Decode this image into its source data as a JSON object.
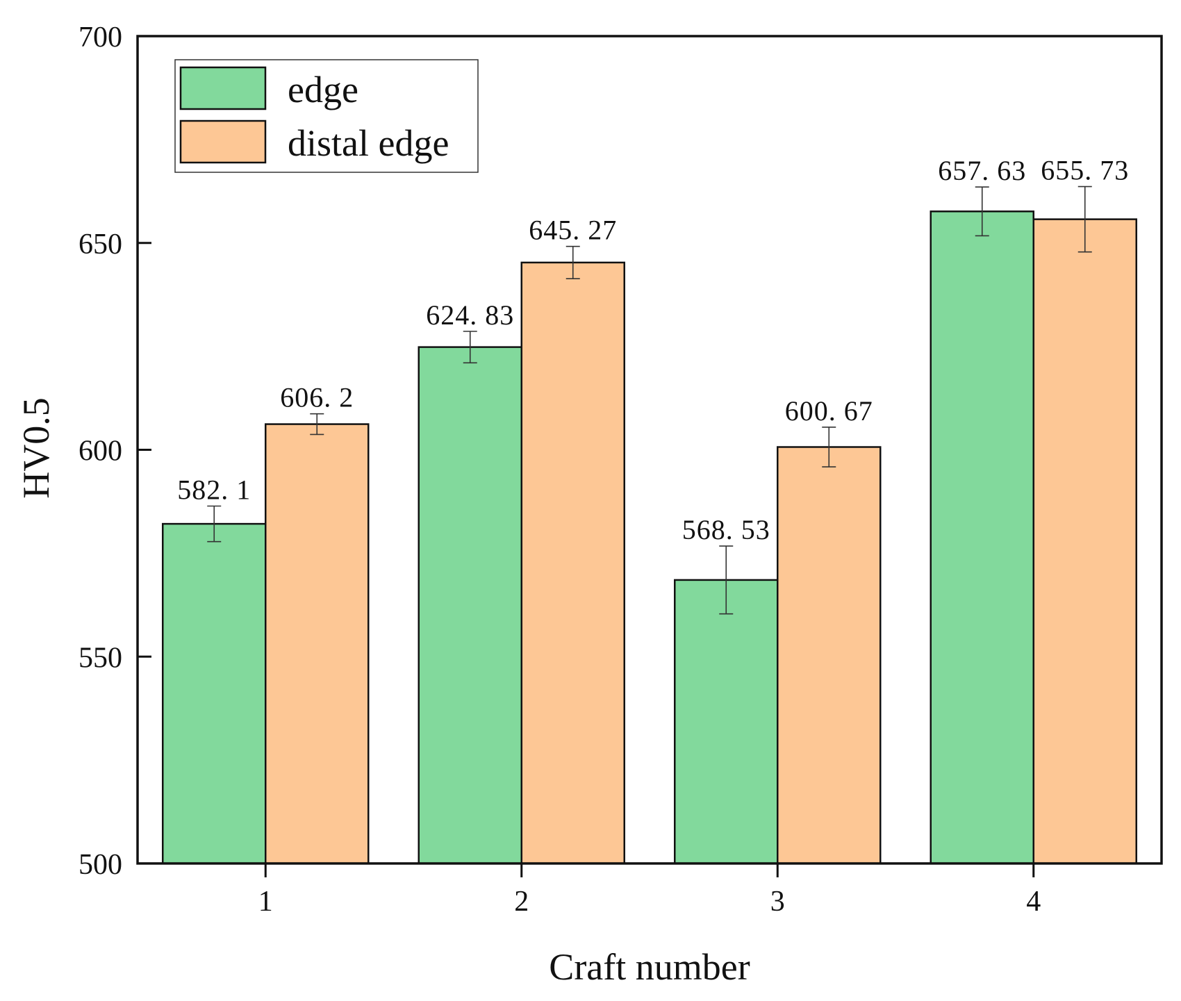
{
  "chart_data": {
    "type": "bar",
    "title": "",
    "xlabel": "Craft number",
    "ylabel": "HV0.5",
    "categories": [
      "1",
      "2",
      "3",
      "4"
    ],
    "ylim": [
      500,
      700
    ],
    "yticks": [
      500,
      550,
      600,
      650,
      700
    ],
    "grid": false,
    "legend_position": "top-left",
    "series": [
      {
        "name": "edge",
        "color": "#82d99c",
        "values": [
          582.1,
          624.83,
          568.53,
          657.63
        ],
        "labels": [
          "582. 1",
          "624. 83",
          "568. 53",
          "657. 63"
        ],
        "errors": [
          4.3,
          3.8,
          8.2,
          5.9
        ]
      },
      {
        "name": "distal edge",
        "color": "#fdc795",
        "values": [
          606.2,
          645.27,
          600.67,
          655.73
        ],
        "labels": [
          "606. 2",
          "645. 27",
          "600. 67",
          "655. 73"
        ],
        "errors": [
          2.5,
          3.9,
          4.8,
          7.9
        ]
      }
    ]
  }
}
